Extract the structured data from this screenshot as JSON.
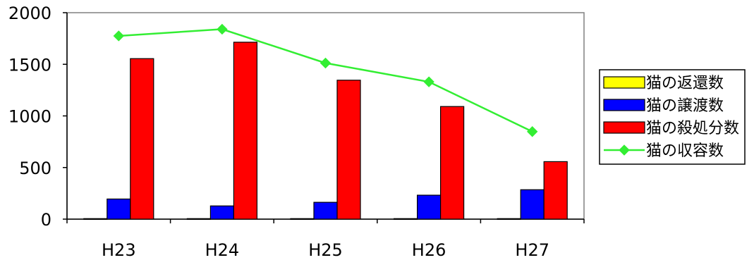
{
  "chart_data": {
    "type": "bar",
    "categories": [
      "H23",
      "H24",
      "H25",
      "H26",
      "H27"
    ],
    "ylim": [
      0,
      2000
    ],
    "yticks": [
      0,
      500,
      1000,
      1500,
      2000
    ],
    "grid": false,
    "legend_position": "right",
    "series": [
      {
        "name": "猫の返還数",
        "type": "bar",
        "color": "#ffff00",
        "values": [
          5,
          5,
          5,
          5,
          5
        ]
      },
      {
        "name": "猫の譲渡数",
        "type": "bar",
        "color": "#0000ff",
        "values": [
          195,
          128,
          163,
          232,
          285
        ]
      },
      {
        "name": "猫の殺処分数",
        "type": "bar",
        "color": "#ff0000",
        "values": [
          1555,
          1714,
          1346,
          1091,
          557
        ]
      },
      {
        "name": "猫の収容数",
        "type": "line",
        "color": "#33ee33",
        "marker": "diamond",
        "values": [
          1775,
          1840,
          1512,
          1330,
          848
        ]
      }
    ]
  }
}
